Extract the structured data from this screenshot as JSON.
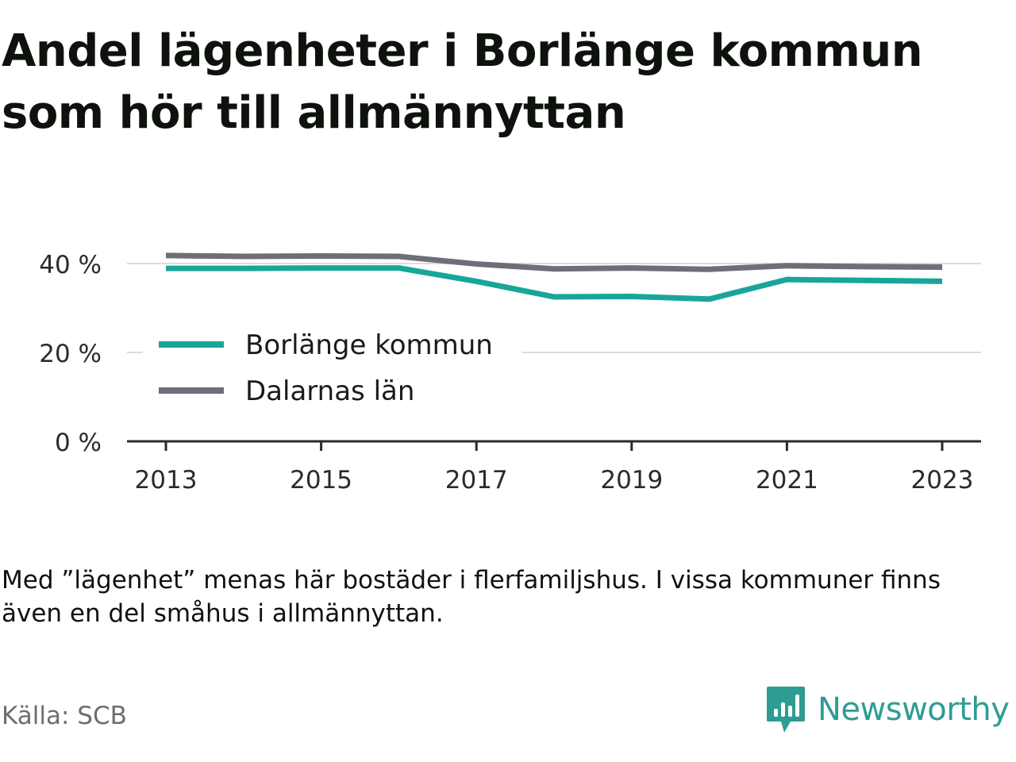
{
  "title": "Andel lägenheter i Borlänge kommun som hör till allmännyttan",
  "note": "Med ”lägenhet” menas här bostäder i flerfamiljshus. I vissa kommuner finns även en del småhus i allmännyttan.",
  "source": "Källa: SCB",
  "brand": "Newsworthy",
  "colors": {
    "accent": "#18a699",
    "gray_series": "#6e6e78",
    "brand": "#2e9c93"
  },
  "chart_data": {
    "type": "line",
    "x": [
      2013,
      2014,
      2015,
      2016,
      2017,
      2018,
      2019,
      2020,
      2021,
      2022,
      2023
    ],
    "x_ticks": [
      "2013",
      "2015",
      "2017",
      "2019",
      "2021",
      "2023"
    ],
    "y_ticks": [
      "0 %",
      "20 %",
      "40 %"
    ],
    "ylim": [
      0,
      45
    ],
    "grid": true,
    "legend_position": "middle-left",
    "series": [
      {
        "name": "Borlänge kommun",
        "color": "#18a699",
        "values": [
          38.9,
          38.9,
          39.0,
          39.0,
          36.0,
          32.5,
          32.6,
          32.0,
          36.4,
          36.2,
          36.0
        ]
      },
      {
        "name": "Dalarnas län",
        "color": "#6e6e78",
        "values": [
          41.8,
          41.6,
          41.7,
          41.6,
          39.9,
          38.8,
          39.0,
          38.7,
          39.5,
          39.3,
          39.2
        ]
      }
    ]
  }
}
